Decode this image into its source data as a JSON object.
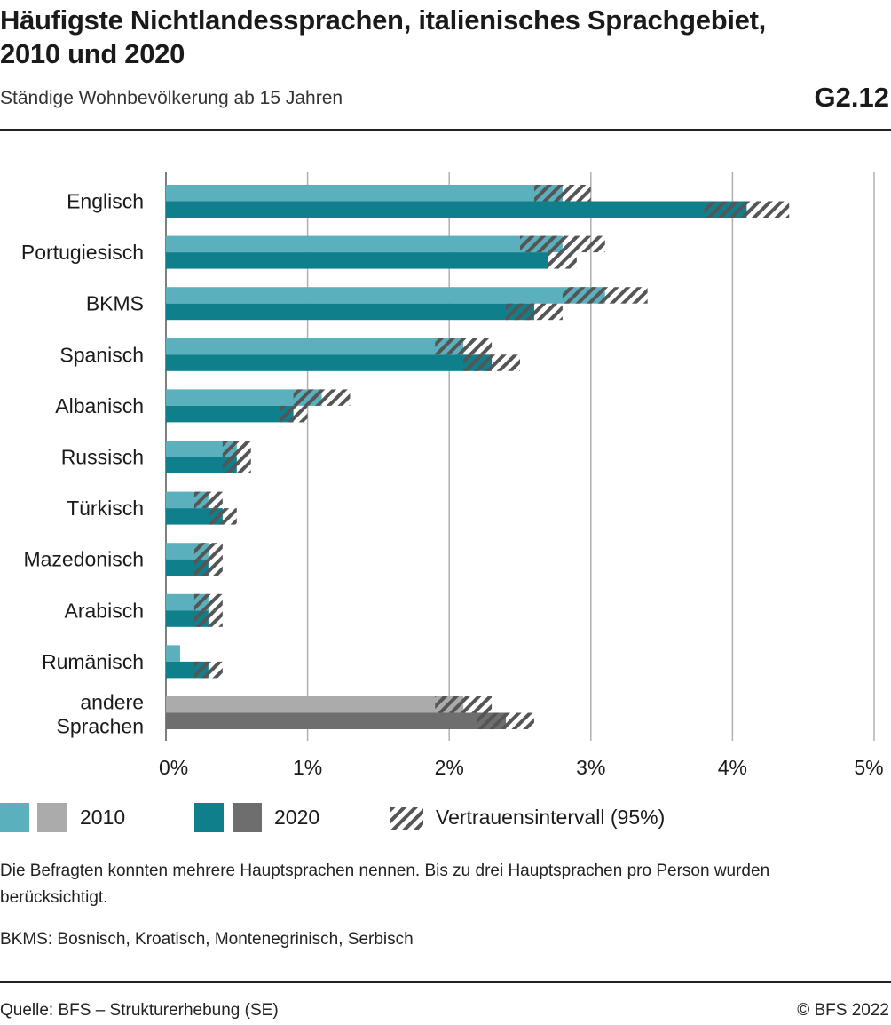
{
  "header": {
    "title": "Häufigste Nichtlandessprachen, italienisches Sprachgebiet, 2010 und 2020",
    "subtitle": "Ständige Wohnbevölkerung ab 15 Jahren",
    "code": "G2.12"
  },
  "colors": {
    "y2010": "#5bb0bd",
    "y2020": "#0f7f8c",
    "other2010": "#ababab",
    "other2020": "#6e6e6e",
    "grid": "#b0b0b0",
    "hatch": "#555555"
  },
  "chart_data": {
    "type": "bar",
    "orientation": "horizontal",
    "categories": [
      "Englisch",
      "Portugiesisch",
      "BKMS",
      "Spanisch",
      "Albanisch",
      "Russisch",
      "Türkisch",
      "Mazedonisch",
      "Arabisch",
      "Rumänisch",
      "andere Sprachen"
    ],
    "series": [
      {
        "name": "2010",
        "values": [
          2.8,
          2.8,
          3.1,
          2.1,
          1.1,
          0.5,
          0.3,
          0.3,
          0.3,
          0.1,
          2.1
        ],
        "ci_low": [
          2.6,
          2.5,
          2.8,
          1.9,
          0.9,
          0.4,
          0.2,
          0.2,
          0.2,
          0.1,
          1.9
        ],
        "ci_high": [
          3.0,
          3.1,
          3.4,
          2.3,
          1.3,
          0.6,
          0.4,
          0.4,
          0.4,
          0.1,
          2.3
        ]
      },
      {
        "name": "2020",
        "values": [
          4.1,
          2.7,
          2.6,
          2.3,
          0.9,
          0.5,
          0.4,
          0.3,
          0.3,
          0.3,
          2.4
        ],
        "ci_low": [
          3.8,
          2.7,
          2.4,
          2.1,
          0.8,
          0.4,
          0.3,
          0.2,
          0.2,
          0.2,
          2.2
        ],
        "ci_high": [
          4.4,
          2.9,
          2.8,
          2.5,
          1.0,
          0.6,
          0.5,
          0.4,
          0.4,
          0.4,
          2.6
        ]
      }
    ],
    "x_ticks": [
      "0%",
      "1%",
      "2%",
      "3%",
      "4%",
      "5%"
    ],
    "xlim": [
      0,
      5
    ],
    "grid": true,
    "legend_position": "bottom"
  },
  "legend": {
    "label_2010": "2010",
    "label_2020": "2020",
    "label_ci": "Vertrauensintervall (95%)"
  },
  "notes": {
    "note1": "Die Befragten konnten mehrere Hauptsprachen nennen. Bis zu drei Hauptsprachen pro Person wurden berücksichtigt.",
    "note2": "BKMS: Bosnisch, Kroatisch, Montenegrinisch, Serbisch"
  },
  "footer": {
    "source": "Quelle: BFS – Strukturerhebung (SE)",
    "copyright": "© BFS 2022"
  }
}
